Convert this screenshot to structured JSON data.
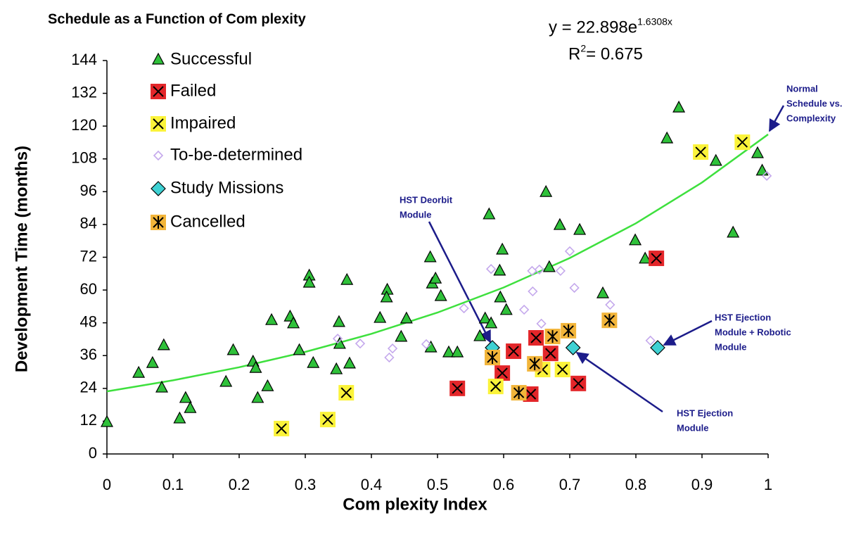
{
  "chart_data": {
    "type": "scatter",
    "title": "Schedule as a Function of Com plexity",
    "x_label": "Com plexity Index",
    "y_label": "Development Time (months)",
    "xlim": [
      0,
      1
    ],
    "ylim": [
      0,
      144
    ],
    "xticks": [
      0,
      0.1,
      0.2,
      0.3,
      0.4,
      0.5,
      0.6,
      0.7,
      0.8,
      0.9,
      1
    ],
    "yticks": [
      0,
      12,
      24,
      36,
      48,
      60,
      72,
      84,
      96,
      108,
      120,
      132,
      144
    ],
    "grid": false,
    "legend": "upper left",
    "series": [
      {
        "name": "Successful",
        "marker": "triangle",
        "color": "#2fc13a",
        "x": [
          0,
          0.048,
          0.069,
          0.086,
          0.083,
          0.11,
          0.119,
          0.126,
          0.18,
          0.191,
          0.221,
          0.225,
          0.228,
          0.243,
          0.249,
          0.277,
          0.282,
          0.291,
          0.306,
          0.306,
          0.312,
          0.347,
          0.351,
          0.352,
          0.363,
          0.367,
          0.413,
          0.424,
          0.423,
          0.445,
          0.453,
          0.489,
          0.49,
          0.492,
          0.497,
          0.505,
          0.517,
          0.53,
          0.564,
          0.572,
          0.578,
          0.581,
          0.594,
          0.598,
          0.595,
          0.604,
          0.664,
          0.669,
          0.685,
          0.715,
          0.75,
          0.799,
          0.814,
          0.847,
          0.865,
          0.921,
          0.947,
          0.984,
          0.991
        ],
        "values": [
          11.6,
          29.6,
          33.2,
          39.7,
          24.2,
          12.9,
          20.4,
          16.7,
          26.3,
          37.9,
          33.7,
          31.4,
          20.4,
          24.7,
          48.9,
          50.2,
          47.7,
          37.9,
          65.2,
          62.6,
          33.2,
          30.9,
          48.2,
          40.2,
          63.6,
          33.0,
          49.7,
          60.0,
          57.2,
          42.8,
          49.5,
          71.9,
          38.9,
          62.3,
          64.1,
          57.7,
          37.1,
          37.1,
          43.0,
          49.5,
          87.6,
          47.7,
          67.0,
          74.7,
          57.2,
          52.6,
          95.8,
          68.3,
          83.7,
          81.9,
          58.7,
          78.1,
          71.4,
          115.4,
          126.7,
          107.2,
          80.9,
          110.0,
          103.6
        ]
      },
      {
        "name": "Failed",
        "marker": "xsquare",
        "color": "#e3262a",
        "x": [
          0.53,
          0.598,
          0.615,
          0.641,
          0.649,
          0.671,
          0.713,
          0.831
        ],
        "values": [
          24.0,
          29.6,
          37.6,
          21.9,
          42.5,
          36.8,
          25.8,
          71.6
        ]
      },
      {
        "name": "Impaired",
        "marker": "xsquare",
        "color": "#fbf33a",
        "x": [
          0.264,
          0.334,
          0.362,
          0.588,
          0.659,
          0.689,
          0.898,
          0.961
        ],
        "values": [
          9.3,
          12.6,
          22.4,
          24.7,
          30.9,
          30.9,
          110.5,
          114.1
        ]
      },
      {
        "name": "To-be-determined",
        "marker": "hollowdiamond",
        "color": "#c4a8ec",
        "x": [
          0.349,
          0.383,
          0.427,
          0.432,
          0.483,
          0.54,
          0.581,
          0.631,
          0.644,
          0.643,
          0.654,
          0.657,
          0.686,
          0.7,
          0.707,
          0.761,
          0.822,
          0.998
        ],
        "values": [
          42.2,
          40.4,
          35.3,
          38.6,
          40.2,
          53.3,
          67.7,
          52.8,
          59.5,
          67.0,
          67.5,
          47.7,
          67.0,
          74.2,
          60.8,
          54.6,
          41.5,
          101.8
        ]
      },
      {
        "name": "Study Missions",
        "marker": "diamond",
        "color": "#3ed1d3",
        "x": [
          0.583,
          0.705,
          0.833
        ],
        "values": [
          38.9,
          38.9,
          38.9
        ]
      },
      {
        "name": "Cancelled",
        "marker": "starsquare",
        "color": "#f2b53a",
        "x": [
          0.583,
          0.623,
          0.647,
          0.674,
          0.698,
          0.76
        ],
        "values": [
          35.3,
          22.4,
          33.0,
          43.0,
          45.1,
          48.9
        ]
      }
    ],
    "trendline": {
      "color": "#3ee03e",
      "x": [
        0,
        0.1,
        0.2,
        0.3,
        0.4,
        0.5,
        0.6,
        0.7,
        0.8,
        0.9,
        1
      ],
      "values": [
        22.9,
        26.95,
        31.73,
        37.35,
        43.96,
        51.75,
        60.92,
        71.71,
        84.41,
        99.36,
        116.97
      ]
    },
    "equation": {
      "text": "y = 22.898e",
      "superscript": "1.6308x"
    },
    "r_squared": {
      "text": "R",
      "superscript": "2",
      "rest": " = 0.675"
    },
    "annotations": [
      {
        "lines": [
          "Normal",
          "Schedule vs.",
          "Complexity"
        ]
      },
      {
        "lines": [
          "HST Deorbit",
          "Module"
        ]
      },
      {
        "lines": [
          "HST Ejection",
          "Module + Robotic",
          "Module"
        ]
      },
      {
        "lines": [
          "HST Ejection",
          "Module"
        ]
      }
    ]
  }
}
